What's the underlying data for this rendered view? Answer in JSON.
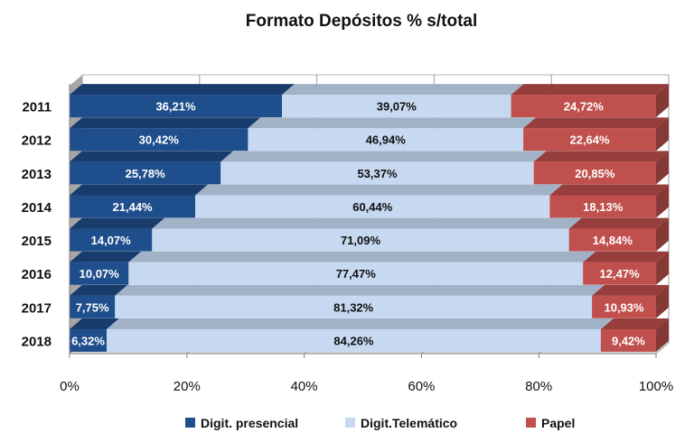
{
  "chart_data": {
    "type": "bar",
    "orientation": "horizontal",
    "stacked": "percent",
    "title": "Formato Depósitos % s/total",
    "categories": [
      "2011",
      "2012",
      "2013",
      "2014",
      "2015",
      "2016",
      "2017",
      "2018"
    ],
    "series": [
      {
        "name": "Digit. presencial",
        "color": "#1f4e8c",
        "values": [
          36.21,
          30.42,
          25.78,
          21.44,
          14.07,
          10.07,
          7.75,
          6.32
        ],
        "labels": [
          "36,21%",
          "30,42%",
          "25,78%",
          "21,44%",
          "14,07%",
          "10,07%",
          "7,75%",
          "6,32%"
        ]
      },
      {
        "name": "Digit.Telemático",
        "color": "#c6d9f1",
        "values": [
          39.07,
          46.94,
          53.37,
          60.44,
          71.09,
          77.47,
          81.32,
          84.26
        ],
        "labels": [
          "39,07%",
          "46,94%",
          "53,37%",
          "60,44%",
          "71,09%",
          "77,47%",
          "81,32%",
          "84,26%"
        ]
      },
      {
        "name": "Papel",
        "color": "#c0504d",
        "values": [
          24.72,
          22.64,
          20.85,
          18.13,
          14.84,
          12.47,
          10.93,
          9.42
        ],
        "labels": [
          "24,72%",
          "22,64%",
          "20,85%",
          "18,13%",
          "14,84%",
          "12,47%",
          "10,93%",
          "9,42%"
        ]
      }
    ],
    "xlim": [
      0,
      100
    ],
    "x_ticks": [
      "0%",
      "20%",
      "40%",
      "60%",
      "80%",
      "100%"
    ],
    "grid": true,
    "legend_position": "bottom",
    "style": "3d"
  }
}
